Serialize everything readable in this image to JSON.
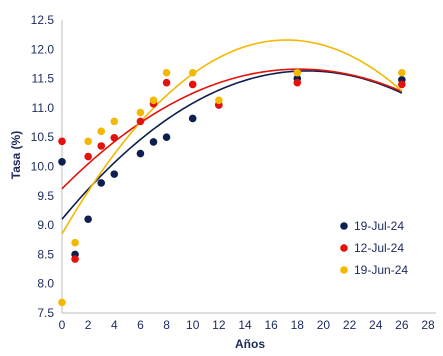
{
  "chart_data": {
    "type": "scatter",
    "xlabel": "Años",
    "ylabel": "Tasa (%)",
    "xlim": [
      0,
      28
    ],
    "ylim": [
      7.5,
      12.5
    ],
    "x_ticks": [
      "0",
      "2",
      "4",
      "6",
      "8",
      "10",
      "12",
      "14",
      "16",
      "18",
      "20",
      "22",
      "24",
      "26",
      "28"
    ],
    "y_ticks": [
      "7.5",
      "8.0",
      "8.5",
      "9.0",
      "9.5",
      "10.0",
      "10.5",
      "11.0",
      "11.5",
      "12.0",
      "12.5"
    ],
    "grid": false,
    "legend_position": "bottom-right",
    "series": [
      {
        "name": "19-Jul-24",
        "color": "#0d1f4f",
        "points": [
          [
            0,
            10.08
          ],
          [
            1,
            8.5
          ],
          [
            2,
            9.1
          ],
          [
            3,
            9.72
          ],
          [
            4,
            9.87
          ],
          [
            6,
            10.22
          ],
          [
            7,
            10.42
          ],
          [
            8,
            10.5
          ],
          [
            10,
            10.82
          ],
          [
            12,
            11.05
          ],
          [
            18,
            11.5
          ],
          [
            26,
            11.48
          ]
        ],
        "trend": [
          9.1,
          0.27,
          -0.0072
        ]
      },
      {
        "name": "12-Jul-24",
        "color": "#e3120b",
        "points": [
          [
            0,
            10.43
          ],
          [
            1,
            8.42
          ],
          [
            2,
            10.17
          ],
          [
            3,
            10.35
          ],
          [
            4,
            10.49
          ],
          [
            6,
            10.77
          ],
          [
            7,
            11.07
          ],
          [
            8,
            11.43
          ],
          [
            10,
            11.4
          ],
          [
            12,
            11.05
          ],
          [
            18,
            11.43
          ],
          [
            26,
            11.4
          ]
        ],
        "trend": [
          9.62,
          0.225,
          -0.0062
        ]
      },
      {
        "name": "19-Jun-24",
        "color": "#f5b800",
        "points": [
          [
            0,
            7.68
          ],
          [
            1,
            8.7
          ],
          [
            2,
            10.43
          ],
          [
            3,
            10.6
          ],
          [
            4,
            10.77
          ],
          [
            6,
            10.92
          ],
          [
            7,
            11.13
          ],
          [
            8,
            11.6
          ],
          [
            10,
            11.6
          ],
          [
            12,
            11.13
          ],
          [
            18,
            11.6
          ],
          [
            26,
            11.6
          ]
        ],
        "trend": [
          8.85,
          0.385,
          -0.0112
        ]
      }
    ]
  }
}
